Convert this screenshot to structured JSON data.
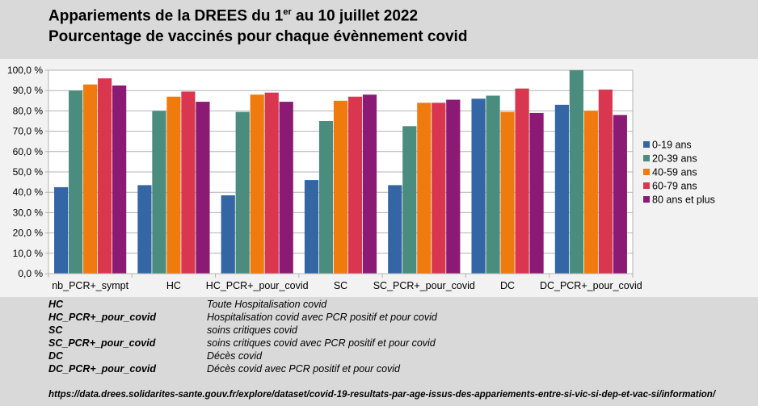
{
  "title": {
    "line1_main": "Appariements de la DREES du 1",
    "line1_sup": "er",
    "line1_end": " au 10 juillet 2022",
    "line2": "Pourcentage de vaccinés pour chaque évènnement covid"
  },
  "chart_data": {
    "type": "bar",
    "categories": [
      "nb_PCR+_sympt",
      "HC",
      "HC_PCR+_pour_covid",
      "SC",
      "SC_PCR+_pour_covid",
      "DC",
      "DC_PCR+_pour_covid"
    ],
    "series": [
      {
        "name": "0-19 ans",
        "color": "#3465a4",
        "values": [
          42.5,
          43.5,
          38.5,
          46.0,
          43.5,
          86.0,
          83.0
        ]
      },
      {
        "name": "20-39 ans",
        "color": "#4a8c7e",
        "values": [
          90.0,
          80.0,
          79.5,
          75.0,
          72.5,
          87.5,
          100.0
        ]
      },
      {
        "name": "40-59 ans",
        "color": "#ef7b0e",
        "values": [
          93.0,
          87.0,
          88.0,
          85.0,
          84.0,
          79.5,
          80.0
        ]
      },
      {
        "name": "60-79 ans",
        "color": "#d93750",
        "values": [
          96.0,
          89.5,
          89.0,
          87.0,
          84.0,
          91.0,
          90.5
        ]
      },
      {
        "name": "80 ans et plus",
        "color": "#8b1a74",
        "values": [
          92.5,
          84.5,
          84.5,
          88.0,
          85.5,
          79.0,
          78.0
        ]
      }
    ],
    "yticks": [
      "0,0 %",
      "10,0 %",
      "20,0 %",
      "30,0 %",
      "40,0 %",
      "50,0 %",
      "60,0 %",
      "70,0 %",
      "80,0 %",
      "90,0 %",
      "100,0 %"
    ],
    "ylim": [
      0,
      100
    ],
    "grid": true,
    "legend_position": "right"
  },
  "glossary": [
    {
      "term": "HC",
      "def": "Toute Hospitalisation covid"
    },
    {
      "term": "HC_PCR+_pour_covid",
      "def": "Hospitalisation covid avec PCR positif et pour covid"
    },
    {
      "term": "SC",
      "def": "soins critiques covid"
    },
    {
      "term": "SC_PCR+_pour_covid",
      "def": "soins critiques covid avec PCR positif et pour covid"
    },
    {
      "term": "DC",
      "def": "Décès covid"
    },
    {
      "term": "DC_PCR+_pour_covid",
      "def": "Décès covid avec PCR positif et pour covid"
    }
  ],
  "source": "https://data.drees.solidarites-sante.gouv.fr/explore/dataset/covid-19-resultats-par-age-issus-des-appariements-entre-si-vic-si-dep-et-vac-si/information/"
}
